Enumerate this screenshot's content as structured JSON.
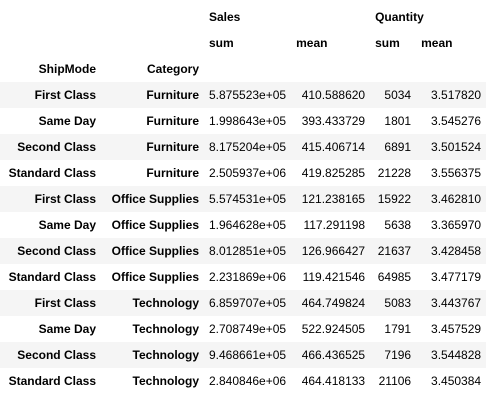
{
  "header": {
    "groups": [
      "Sales",
      "Quantity"
    ],
    "subcolumns": [
      "sum",
      "mean",
      "sum",
      "mean"
    ],
    "index_names": [
      "ShipMode",
      "Category"
    ]
  },
  "rows": [
    {
      "ship_mode": "First Class",
      "category": "Furniture",
      "sales_sum": "5.875523e+05",
      "sales_mean": "410.588620",
      "qty_sum": "5034",
      "qty_mean": "3.517820"
    },
    {
      "ship_mode": "Same Day",
      "category": "Furniture",
      "sales_sum": "1.998643e+05",
      "sales_mean": "393.433729",
      "qty_sum": "1801",
      "qty_mean": "3.545276"
    },
    {
      "ship_mode": "Second Class",
      "category": "Furniture",
      "sales_sum": "8.175204e+05",
      "sales_mean": "415.406714",
      "qty_sum": "6891",
      "qty_mean": "3.501524"
    },
    {
      "ship_mode": "Standard Class",
      "category": "Furniture",
      "sales_sum": "2.505937e+06",
      "sales_mean": "419.825285",
      "qty_sum": "21228",
      "qty_mean": "3.556375"
    },
    {
      "ship_mode": "First Class",
      "category": "Office Supplies",
      "sales_sum": "5.574531e+05",
      "sales_mean": "121.238165",
      "qty_sum": "15922",
      "qty_mean": "3.462810"
    },
    {
      "ship_mode": "Same Day",
      "category": "Office Supplies",
      "sales_sum": "1.964628e+05",
      "sales_mean": "117.291198",
      "qty_sum": "5638",
      "qty_mean": "3.365970"
    },
    {
      "ship_mode": "Second Class",
      "category": "Office Supplies",
      "sales_sum": "8.012851e+05",
      "sales_mean": "126.966427",
      "qty_sum": "21637",
      "qty_mean": "3.428458"
    },
    {
      "ship_mode": "Standard Class",
      "category": "Office Supplies",
      "sales_sum": "2.231869e+06",
      "sales_mean": "119.421546",
      "qty_sum": "64985",
      "qty_mean": "3.477179"
    },
    {
      "ship_mode": "First Class",
      "category": "Technology",
      "sales_sum": "6.859707e+05",
      "sales_mean": "464.749824",
      "qty_sum": "5083",
      "qty_mean": "3.443767"
    },
    {
      "ship_mode": "Same Day",
      "category": "Technology",
      "sales_sum": "2.708749e+05",
      "sales_mean": "522.924505",
      "qty_sum": "1791",
      "qty_mean": "3.457529"
    },
    {
      "ship_mode": "Second Class",
      "category": "Technology",
      "sales_sum": "9.468661e+05",
      "sales_mean": "466.436525",
      "qty_sum": "7196",
      "qty_mean": "3.544828"
    },
    {
      "ship_mode": "Standard Class",
      "category": "Technology",
      "sales_sum": "2.840846e+06",
      "sales_mean": "464.418133",
      "qty_sum": "21106",
      "qty_mean": "3.450384"
    }
  ],
  "colors": {
    "text": "#000000",
    "stripe": "#f5f5f5",
    "background": "#ffffff"
  }
}
